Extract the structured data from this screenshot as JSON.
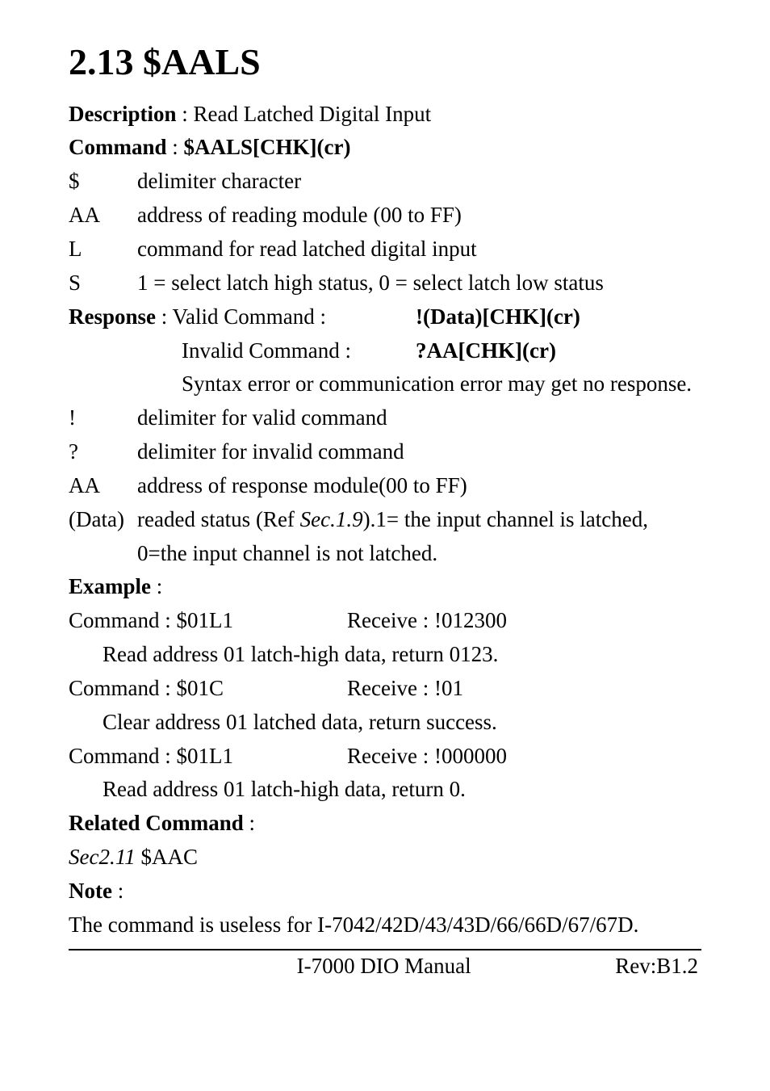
{
  "title": "2.13 $AALS",
  "description_label": "Description",
  "description_text": " : Read Latched Digital Input",
  "command_label": "Command",
  "command_text": " : ",
  "command_syntax": "$AALS[CHK](cr)",
  "cmd_params": [
    {
      "k": "$",
      "v": "delimiter character"
    },
    {
      "k": "AA",
      "v": "address of reading module (00 to FF)"
    },
    {
      "k": "L",
      "v": "command for read latched digital input"
    },
    {
      "k": "S",
      "v": "1 = select latch high status, 0 = select latch low status"
    }
  ],
  "response_label": "Response",
  "response_valid_label": " : Valid Command :",
  "response_valid_val": "!(Data)[CHK](cr)",
  "response_invalid_label": "Invalid Command :",
  "response_invalid_val": "?AA[CHK](cr)",
  "response_note": "Syntax error or communication error may get no response.",
  "resp_params": [
    {
      "k": "!",
      "v": "delimiter for valid command"
    },
    {
      "k": "?",
      "v": "delimiter for invalid command"
    },
    {
      "k": "AA",
      "v": "address of response module(00 to FF)"
    }
  ],
  "data_key": "(Data)",
  "data_pre": "readed status (Ref ",
  "data_ref": "Sec.1.9",
  "data_post": ").1= the input channel is latched, 0=the input channel is not latched.",
  "example_label": "Example",
  "examples": [
    {
      "cmd": "Command : $01L1",
      "recv": "Receive : !012300",
      "desc": "Read address 01 latch-high data, return 0123."
    },
    {
      "cmd": "Command : $01C",
      "recv": "Receive : !01",
      "desc": "Clear address 01 latched data, return success."
    },
    {
      "cmd": "Command : $01L1",
      "recv": "Receive : !000000",
      "desc": "Read address 01 latch-high data, return 0."
    }
  ],
  "related_label": "Related Command",
  "related_ref": "Sec2.11",
  "related_val": " $AAC",
  "note_label": "Note",
  "note_text": "The command is useless for I-7042/42D/43/43D/66/66D/67/67D.",
  "footer_center": "I-7000 DIO Manual",
  "footer_right": "Rev:B1.2"
}
